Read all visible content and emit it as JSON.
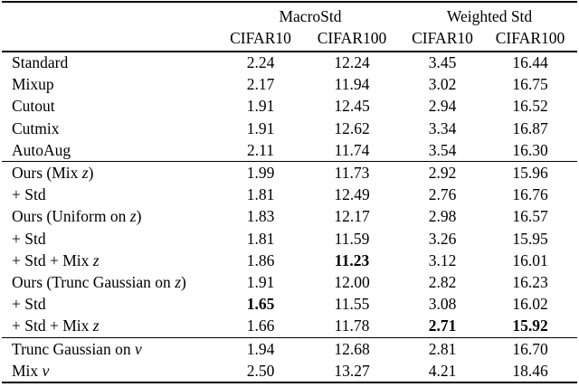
{
  "table": {
    "background": "#ffffff",
    "text_color": "#000000",
    "rule_color": "#000000",
    "group_headers": [
      {
        "label": "MacroStd",
        "span": 2
      },
      {
        "label": "Weighted Std",
        "span": 2
      }
    ],
    "col_headers": [
      "CIFAR10",
      "CIFAR100",
      "CIFAR10",
      "CIFAR100"
    ],
    "sections": [
      {
        "name": "baselines",
        "rows": [
          {
            "label": "Standard",
            "values": [
              "2.24",
              "12.24",
              "3.45",
              "16.44"
            ],
            "bold": []
          },
          {
            "label": "Mixup",
            "values": [
              "2.17",
              "11.94",
              "3.02",
              "16.75"
            ],
            "bold": []
          },
          {
            "label": "Cutout",
            "values": [
              "1.91",
              "12.45",
              "2.94",
              "16.52"
            ],
            "bold": []
          },
          {
            "label": "Cutmix",
            "values": [
              "1.91",
              "12.62",
              "3.34",
              "16.87"
            ],
            "bold": []
          },
          {
            "label": "AutoAug",
            "values": [
              "2.11",
              "11.74",
              "3.54",
              "16.30"
            ],
            "bold": []
          }
        ]
      },
      {
        "name": "ours",
        "rows": [
          {
            "label": "Ours (Mix *z*)",
            "values": [
              "1.99",
              "11.73",
              "2.92",
              "15.96"
            ],
            "bold": []
          },
          {
            "label": "+ Std",
            "values": [
              "1.81",
              "12.49",
              "2.76",
              "16.76"
            ],
            "bold": []
          },
          {
            "label": "Ours (Uniform on *z*)",
            "values": [
              "1.83",
              "12.17",
              "2.98",
              "16.57"
            ],
            "bold": []
          },
          {
            "label": "+ Std",
            "values": [
              "1.81",
              "11.59",
              "3.26",
              "15.95"
            ],
            "bold": []
          },
          {
            "label": "+ Std + Mix *z*",
            "values": [
              "1.86",
              "11.23",
              "3.12",
              "16.01"
            ],
            "bold": [
              1
            ]
          },
          {
            "label": "Ours (Trunc Gaussian on *z*)",
            "values": [
              "1.91",
              "12.00",
              "2.82",
              "16.23"
            ],
            "bold": []
          },
          {
            "label": "+ Std",
            "values": [
              "1.65",
              "11.55",
              "3.08",
              "16.02"
            ],
            "bold": [
              0
            ]
          },
          {
            "label": "+ Std + Mix *z*",
            "values": [
              "1.66",
              "11.78",
              "2.71",
              "15.92"
            ],
            "bold": [
              2,
              3
            ]
          }
        ]
      },
      {
        "name": "nu-variants",
        "rows": [
          {
            "label": "Trunc Gaussian on *ν*",
            "values": [
              "1.94",
              "12.68",
              "2.81",
              "16.70"
            ],
            "bold": []
          },
          {
            "label": "Mix *ν*",
            "values": [
              "2.50",
              "13.27",
              "4.21",
              "18.46"
            ],
            "bold": []
          }
        ]
      }
    ]
  }
}
